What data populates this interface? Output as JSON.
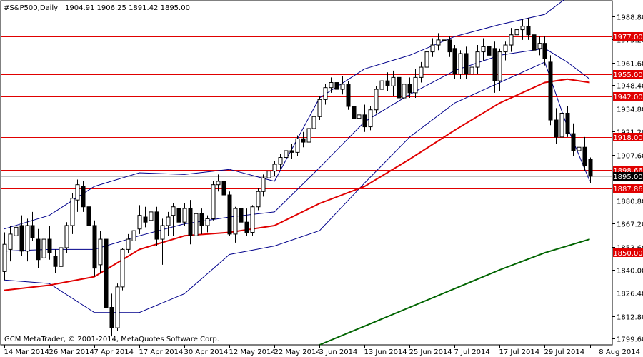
{
  "header": {
    "symbol": "#S&P500,Daily",
    "ohlc": "1904.91 1906.25 1891.42 1895.00"
  },
  "footer": {
    "copyright": "GCM MetaTrader, © 2001-2014, MetaQuotes Software Corp."
  },
  "colors": {
    "up_candle": "#ffffff",
    "down_candle": "#000000",
    "candle_outline": "#000000",
    "bollinger": "#00008b",
    "ma_red": "#e00000",
    "ma_green": "#006400",
    "level_line": "#e00000",
    "level_tag_bg": "#e00000",
    "level_tag_text": "#ffffff",
    "price_tag_bg": "#000000"
  },
  "chart_data": {
    "type": "candlestick",
    "title": "#S&P500,Daily",
    "ylim": [
      1796,
      1998
    ],
    "y_ticks": [
      1799.6,
      1812.8,
      1826.4,
      1840.0,
      1853.6,
      1867.2,
      1880.8,
      1894.0,
      1907.6,
      1921.2,
      1934.8,
      1948.4,
      1961.6,
      1975.2,
      1988.8
    ],
    "y_tick_labels": [
      "1799.60",
      "1812.80",
      "1826.40",
      "1840.00",
      "1853.60",
      "1867.20",
      "1880.80",
      "1894.00",
      "1907.60",
      "1921.20",
      "1934.80",
      "1948.40",
      "1961.60",
      "1975.20",
      "1988.80"
    ],
    "x_tick_labels": [
      "14 Mar 2014",
      "26 Mar 2014",
      "7 Apr 2014",
      "17 Apr 2014",
      "30 Apr 2014",
      "12 May 2014",
      "22 May 2014",
      "3 Jun 2014",
      "13 Jun 2014",
      "25 Jun 2014",
      "7 Jul 2014",
      "17 Jul 2014",
      "29 Jul 2014",
      "8 Aug 2014"
    ],
    "x_tick_index": [
      0,
      8,
      16,
      24,
      32,
      40,
      48,
      56,
      64,
      72,
      80,
      88,
      96,
      104
    ],
    "horizontal_levels": [
      {
        "value": 1977.0,
        "label": "1977.00"
      },
      {
        "value": 1955.0,
        "label": "1955.00"
      },
      {
        "value": 1942.0,
        "label": "1942.00"
      },
      {
        "value": 1918.0,
        "label": "1918.00"
      },
      {
        "value": 1898.66,
        "label": "1898.66"
      },
      {
        "value": 1887.86,
        "label": "1887.86"
      },
      {
        "value": 1850.0,
        "label": "1850.00"
      }
    ],
    "current_price": {
      "value": 1895.0,
      "label": "1895.00"
    },
    "candles": [
      {
        "o": 1839,
        "h": 1862,
        "l": 1834,
        "c": 1855
      },
      {
        "o": 1852,
        "h": 1866,
        "l": 1845,
        "c": 1861
      },
      {
        "o": 1860,
        "h": 1872,
        "l": 1852,
        "c": 1865
      },
      {
        "o": 1866,
        "h": 1872,
        "l": 1848,
        "c": 1851
      },
      {
        "o": 1851,
        "h": 1870,
        "l": 1845,
        "c": 1866
      },
      {
        "o": 1866,
        "h": 1874,
        "l": 1857,
        "c": 1859
      },
      {
        "o": 1858,
        "h": 1864,
        "l": 1841,
        "c": 1846
      },
      {
        "o": 1847,
        "h": 1859,
        "l": 1840,
        "c": 1858
      },
      {
        "o": 1858,
        "h": 1866,
        "l": 1846,
        "c": 1850
      },
      {
        "o": 1848,
        "h": 1852,
        "l": 1838,
        "c": 1842
      },
      {
        "o": 1842,
        "h": 1855,
        "l": 1839,
        "c": 1853
      },
      {
        "o": 1853,
        "h": 1868,
        "l": 1850,
        "c": 1866
      },
      {
        "o": 1866,
        "h": 1885,
        "l": 1861,
        "c": 1882
      },
      {
        "o": 1881,
        "h": 1893,
        "l": 1874,
        "c": 1890
      },
      {
        "o": 1889,
        "h": 1892,
        "l": 1874,
        "c": 1877
      },
      {
        "o": 1877,
        "h": 1890,
        "l": 1862,
        "c": 1866
      },
      {
        "o": 1866,
        "h": 1869,
        "l": 1836,
        "c": 1841
      },
      {
        "o": 1843,
        "h": 1863,
        "l": 1838,
        "c": 1858
      },
      {
        "o": 1858,
        "h": 1863,
        "l": 1814,
        "c": 1818
      },
      {
        "o": 1818,
        "h": 1826,
        "l": 1801,
        "c": 1806
      },
      {
        "o": 1806,
        "h": 1832,
        "l": 1804,
        "c": 1830
      },
      {
        "o": 1830,
        "h": 1853,
        "l": 1828,
        "c": 1852
      },
      {
        "o": 1852,
        "h": 1861,
        "l": 1850,
        "c": 1858
      },
      {
        "o": 1857,
        "h": 1867,
        "l": 1855,
        "c": 1863
      },
      {
        "o": 1864,
        "h": 1878,
        "l": 1861,
        "c": 1872
      },
      {
        "o": 1871,
        "h": 1877,
        "l": 1865,
        "c": 1868
      },
      {
        "o": 1869,
        "h": 1876,
        "l": 1862,
        "c": 1874
      },
      {
        "o": 1874,
        "h": 1877,
        "l": 1854,
        "c": 1858
      },
      {
        "o": 1858,
        "h": 1870,
        "l": 1843,
        "c": 1866
      },
      {
        "o": 1866,
        "h": 1874,
        "l": 1860,
        "c": 1871
      },
      {
        "o": 1872,
        "h": 1879,
        "l": 1860,
        "c": 1877
      },
      {
        "o": 1876,
        "h": 1883,
        "l": 1865,
        "c": 1868
      },
      {
        "o": 1868,
        "h": 1879,
        "l": 1866,
        "c": 1876
      },
      {
        "o": 1876,
        "h": 1881,
        "l": 1855,
        "c": 1860
      },
      {
        "o": 1860,
        "h": 1877,
        "l": 1856,
        "c": 1873
      },
      {
        "o": 1873,
        "h": 1876,
        "l": 1861,
        "c": 1866
      },
      {
        "o": 1866,
        "h": 1872,
        "l": 1862,
        "c": 1870
      },
      {
        "o": 1870,
        "h": 1892,
        "l": 1869,
        "c": 1890
      },
      {
        "o": 1890,
        "h": 1896,
        "l": 1886,
        "c": 1892
      },
      {
        "o": 1892,
        "h": 1895,
        "l": 1880,
        "c": 1884
      },
      {
        "o": 1884,
        "h": 1886,
        "l": 1860,
        "c": 1861
      },
      {
        "o": 1861,
        "h": 1877,
        "l": 1856,
        "c": 1876
      },
      {
        "o": 1876,
        "h": 1880,
        "l": 1866,
        "c": 1868
      },
      {
        "o": 1868,
        "h": 1876,
        "l": 1860,
        "c": 1862
      },
      {
        "o": 1862,
        "h": 1878,
        "l": 1860,
        "c": 1877
      },
      {
        "o": 1877,
        "h": 1888,
        "l": 1875,
        "c": 1886
      },
      {
        "o": 1886,
        "h": 1896,
        "l": 1883,
        "c": 1894
      },
      {
        "o": 1894,
        "h": 1900,
        "l": 1890,
        "c": 1898
      },
      {
        "o": 1898,
        "h": 1904,
        "l": 1895,
        "c": 1902
      },
      {
        "o": 1902,
        "h": 1908,
        "l": 1899,
        "c": 1906
      },
      {
        "o": 1906,
        "h": 1913,
        "l": 1903,
        "c": 1910
      },
      {
        "o": 1910,
        "h": 1914,
        "l": 1905,
        "c": 1909
      },
      {
        "o": 1909,
        "h": 1919,
        "l": 1907,
        "c": 1917
      },
      {
        "o": 1917,
        "h": 1921,
        "l": 1912,
        "c": 1915
      },
      {
        "o": 1915,
        "h": 1925,
        "l": 1913,
        "c": 1923
      },
      {
        "o": 1923,
        "h": 1932,
        "l": 1921,
        "c": 1930
      },
      {
        "o": 1930,
        "h": 1942,
        "l": 1928,
        "c": 1940
      },
      {
        "o": 1940,
        "h": 1949,
        "l": 1937,
        "c": 1947
      },
      {
        "o": 1947,
        "h": 1953,
        "l": 1944,
        "c": 1950
      },
      {
        "o": 1950,
        "h": 1952,
        "l": 1943,
        "c": 1946
      },
      {
        "o": 1946,
        "h": 1954,
        "l": 1943,
        "c": 1949
      },
      {
        "o": 1949,
        "h": 1951,
        "l": 1934,
        "c": 1936
      },
      {
        "o": 1936,
        "h": 1943,
        "l": 1925,
        "c": 1929
      },
      {
        "o": 1929,
        "h": 1934,
        "l": 1918,
        "c": 1931
      },
      {
        "o": 1931,
        "h": 1937,
        "l": 1921,
        "c": 1924
      },
      {
        "o": 1924,
        "h": 1936,
        "l": 1922,
        "c": 1934
      },
      {
        "o": 1934,
        "h": 1948,
        "l": 1932,
        "c": 1946
      },
      {
        "o": 1946,
        "h": 1953,
        "l": 1944,
        "c": 1951
      },
      {
        "o": 1951,
        "h": 1956,
        "l": 1945,
        "c": 1948
      },
      {
        "o": 1948,
        "h": 1957,
        "l": 1942,
        "c": 1953
      },
      {
        "o": 1953,
        "h": 1957,
        "l": 1938,
        "c": 1941
      },
      {
        "o": 1941,
        "h": 1952,
        "l": 1937,
        "c": 1949
      },
      {
        "o": 1949,
        "h": 1953,
        "l": 1941,
        "c": 1944
      },
      {
        "o": 1944,
        "h": 1958,
        "l": 1941,
        "c": 1953
      },
      {
        "o": 1953,
        "h": 1962,
        "l": 1950,
        "c": 1959
      },
      {
        "o": 1959,
        "h": 1972,
        "l": 1956,
        "c": 1968
      },
      {
        "o": 1968,
        "h": 1976,
        "l": 1965,
        "c": 1972
      },
      {
        "o": 1972,
        "h": 1979,
        "l": 1969,
        "c": 1975
      },
      {
        "o": 1975,
        "h": 1979,
        "l": 1970,
        "c": 1975
      },
      {
        "o": 1975,
        "h": 1977,
        "l": 1965,
        "c": 1968
      },
      {
        "o": 1970,
        "h": 1972,
        "l": 1952,
        "c": 1955
      },
      {
        "o": 1955,
        "h": 1969,
        "l": 1952,
        "c": 1967
      },
      {
        "o": 1967,
        "h": 1971,
        "l": 1952,
        "c": 1955
      },
      {
        "o": 1955,
        "h": 1962,
        "l": 1945,
        "c": 1959
      },
      {
        "o": 1959,
        "h": 1972,
        "l": 1955,
        "c": 1968
      },
      {
        "o": 1968,
        "h": 1976,
        "l": 1963,
        "c": 1971
      },
      {
        "o": 1971,
        "h": 1975,
        "l": 1962,
        "c": 1966
      },
      {
        "o": 1970,
        "h": 1974,
        "l": 1944,
        "c": 1951
      },
      {
        "o": 1951,
        "h": 1970,
        "l": 1945,
        "c": 1968
      },
      {
        "o": 1968,
        "h": 1974,
        "l": 1963,
        "c": 1972
      },
      {
        "o": 1972,
        "h": 1982,
        "l": 1968,
        "c": 1978
      },
      {
        "o": 1978,
        "h": 1985,
        "l": 1972,
        "c": 1981
      },
      {
        "o": 1981,
        "h": 1987,
        "l": 1975,
        "c": 1983
      },
      {
        "o": 1983,
        "h": 1988,
        "l": 1975,
        "c": 1978
      },
      {
        "o": 1978,
        "h": 1980,
        "l": 1966,
        "c": 1969
      },
      {
        "o": 1970,
        "h": 1977,
        "l": 1966,
        "c": 1973
      },
      {
        "o": 1973,
        "h": 1977,
        "l": 1960,
        "c": 1964
      },
      {
        "o": 1962,
        "h": 1966,
        "l": 1925,
        "c": 1928
      },
      {
        "o": 1928,
        "h": 1935,
        "l": 1914,
        "c": 1918
      },
      {
        "o": 1918,
        "h": 1935,
        "l": 1916,
        "c": 1932
      },
      {
        "o": 1932,
        "h": 1936,
        "l": 1918,
        "c": 1920
      },
      {
        "o": 1920,
        "h": 1926,
        "l": 1907,
        "c": 1910
      },
      {
        "o": 1910,
        "h": 1924,
        "l": 1906,
        "c": 1912
      },
      {
        "o": 1912,
        "h": 1918,
        "l": 1898,
        "c": 1901
      },
      {
        "o": 1905,
        "h": 1906,
        "l": 1891,
        "c": 1895
      }
    ],
    "series": [
      {
        "type": "line",
        "name": "",
        "role": "bollinger-upper",
        "x": [
          0,
          8,
          16,
          24,
          32,
          40,
          48,
          56,
          64,
          72,
          80,
          88,
          96,
          100,
          104
        ],
        "y": [
          1864,
          1872,
          1889,
          1897,
          1896,
          1899,
          1892,
          1941,
          1958,
          1966,
          1977,
          1984,
          1990,
          2000,
          2012
        ]
      },
      {
        "type": "line",
        "name": "",
        "role": "bollinger-middle",
        "x": [
          0,
          8,
          16,
          24,
          32,
          40,
          48,
          56,
          64,
          72,
          80,
          88,
          96,
          100,
          104
        ],
        "y": [
          1851,
          1852,
          1852,
          1860,
          1867,
          1871,
          1874,
          1900,
          1927,
          1943,
          1957,
          1966,
          1970,
          1962,
          1952
        ]
      },
      {
        "type": "line",
        "name": "",
        "role": "bollinger-lower",
        "x": [
          0,
          8,
          16,
          24,
          32,
          40,
          48,
          56,
          64,
          72,
          80,
          88,
          96,
          100,
          104
        ],
        "y": [
          1834,
          1832,
          1815,
          1815,
          1826,
          1849,
          1854,
          1863,
          1891,
          1918,
          1938,
          1950,
          1962,
          1924,
          1892
        ]
      },
      {
        "type": "line",
        "name": "",
        "role": "moving-average-red",
        "x": [
          0,
          8,
          16,
          24,
          32,
          40,
          48,
          56,
          64,
          72,
          80,
          88,
          96,
          100,
          104
        ],
        "y": [
          1828,
          1831,
          1836,
          1852,
          1860,
          1862,
          1866,
          1879,
          1889,
          1905,
          1922,
          1938,
          1950,
          1952,
          1950
        ]
      },
      {
        "type": "line",
        "name": "",
        "role": "moving-average-green",
        "x": [
          56,
          64,
          72,
          80,
          88,
          96,
          104
        ],
        "y": [
          1796,
          1807,
          1818,
          1829,
          1840,
          1850,
          1858
        ]
      }
    ]
  }
}
